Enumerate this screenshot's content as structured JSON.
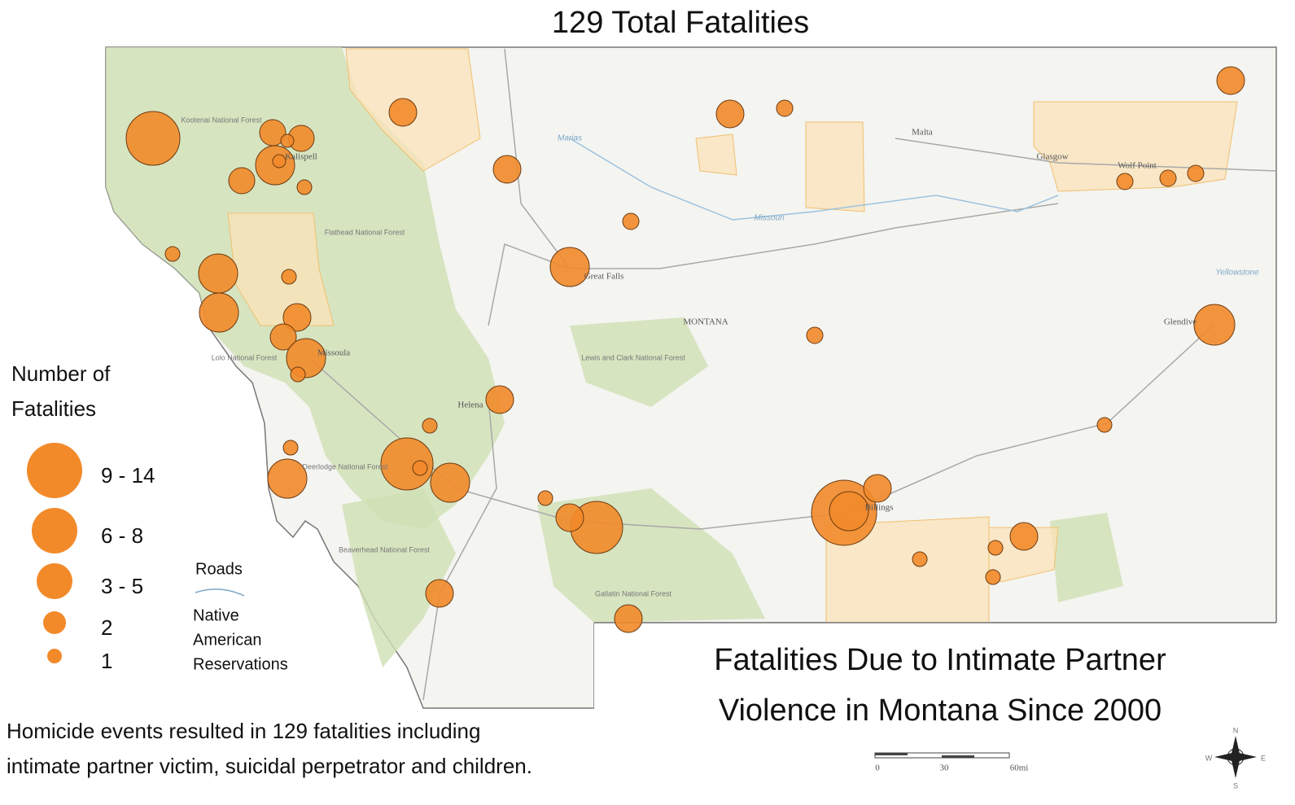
{
  "title": "129 Total Fatalities",
  "legend": {
    "title": [
      "Number of",
      "Fatalities"
    ],
    "classes": [
      "9 - 14",
      "6 - 8",
      "3 - 5",
      "2",
      "1"
    ],
    "roads": "Roads",
    "reservations": [
      "Native",
      "American",
      "Reservations"
    ]
  },
  "heading": [
    "Fatalities Due to Intimate Partner",
    "Violence in Montana Since 2000"
  ],
  "caption": [
    "Homicide events resulted in 129 fatalities including",
    "intimate partner victim, suicidal perpetrator and children."
  ],
  "scale": [
    "0",
    "30",
    "60mi"
  ],
  "compass": [
    "N",
    "E",
    "S",
    "W"
  ],
  "places": [
    "Malta",
    "Glasgow",
    "Wolf Point",
    "MONTANA",
    "Helena",
    "Great Falls",
    "Missoula",
    "Kalispell",
    "Glendive",
    "Billings"
  ],
  "forests": [
    "Kootenai National Forest",
    "Flathead National Forest",
    "Lolo National Forest",
    "Lewis and Clark National Forest",
    "Deerlodge National Forest",
    "Beaverhead National Forest",
    "Gallatin National Forest"
  ],
  "rivers": [
    "Marias",
    "Missouri",
    "Yellowstone"
  ]
}
